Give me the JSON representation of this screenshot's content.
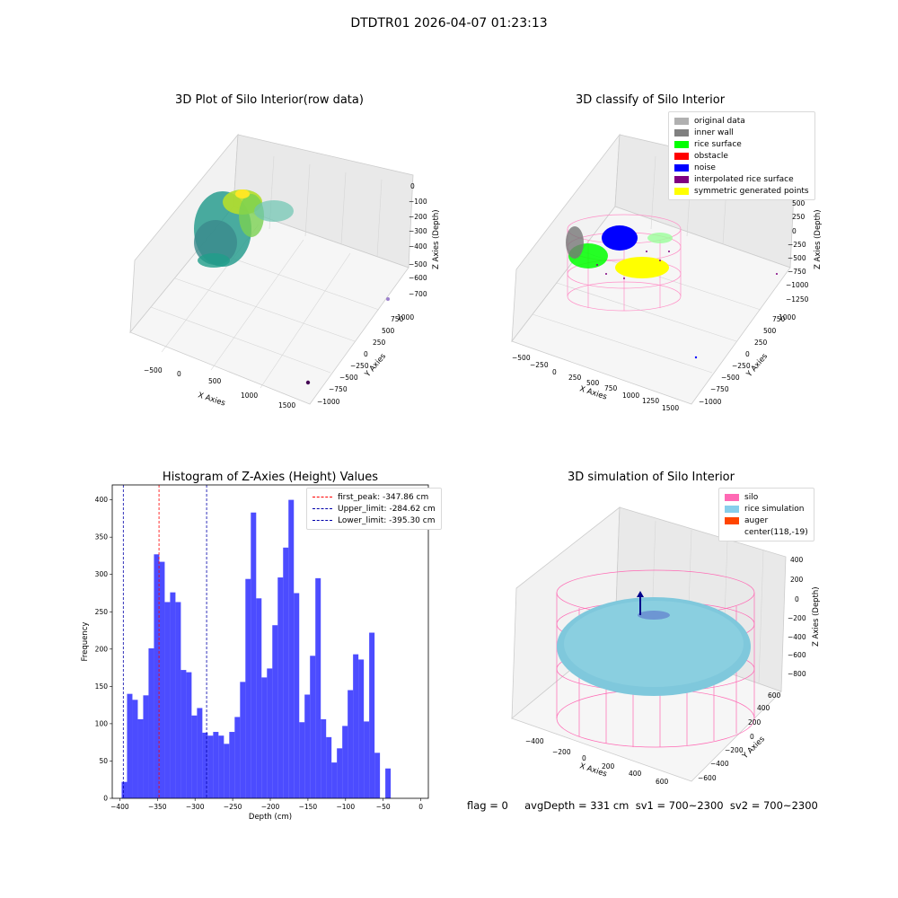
{
  "suptitle": "DTDTR01 2026-04-07 01:23:13",
  "plot1": {
    "title": "3D Plot of Silo Interior(row data)",
    "xlabel": "X Axies",
    "ylabel": "Y Axies",
    "zlabel": "Z Axies (Depth)",
    "xticks": [
      "−500",
      "0",
      "500",
      "1000",
      "1500"
    ],
    "yticks": [
      "−1000",
      "−750",
      "−500",
      "−250",
      "0",
      "250",
      "500",
      "750",
      "1000"
    ],
    "zticks": [
      "0",
      "−100",
      "−200",
      "−300",
      "−400",
      "−500",
      "−600",
      "−700"
    ]
  },
  "plot2": {
    "title": "3D classify of Silo Interior",
    "xlabel": "X Axies",
    "ylabel": "Y Axies",
    "zlabel": "Z Axies (Depth)",
    "xticks": [
      "−500",
      "−250",
      "0",
      "250",
      "500",
      "750",
      "1000",
      "1250",
      "1500"
    ],
    "yticks": [
      "−1000",
      "−750",
      "−500",
      "−250",
      "0",
      "250",
      "500",
      "750",
      "1000"
    ],
    "zticks": [
      "750",
      "500",
      "250",
      "0",
      "−250",
      "−500",
      "−750",
      "−1000",
      "−1250"
    ],
    "legend": [
      {
        "label": "original data",
        "color": "#b0b0b0"
      },
      {
        "label": "inner wall",
        "color": "#808080"
      },
      {
        "label": "rice surface",
        "color": "#00ff00"
      },
      {
        "label": "obstacle",
        "color": "#ff0000"
      },
      {
        "label": "noise",
        "color": "#0000ff"
      },
      {
        "label": "interpolated rice surface",
        "color": "#800080"
      },
      {
        "label": "symmetric generated points",
        "color": "#ffff00"
      }
    ]
  },
  "plot3": {
    "title": "3D simulation of Silo Interior",
    "xlabel": "X Axies",
    "ylabel": "Y Axies",
    "zlabel": "Z Axies (Depth)",
    "xticks": [
      "−400",
      "−200",
      "0",
      "200",
      "400",
      "600"
    ],
    "yticks": [
      "−600",
      "−400",
      "−200",
      "0",
      "200",
      "400",
      "600"
    ],
    "zticks": [
      "400",
      "200",
      "0",
      "−200",
      "−400",
      "−600",
      "−800"
    ],
    "legend": [
      {
        "label": "silo",
        "color": "#ff69b4"
      },
      {
        "label": "rice simulation",
        "color": "#87ceeb"
      },
      {
        "label": "auger",
        "color": "#ff4500"
      },
      {
        "label": "center(118,-19)",
        "color": ""
      }
    ]
  },
  "footer": "flag = 0     avgDepth = 331 cm  sv1 = 700~2300  sv2 = 700~2300",
  "chart_data": {
    "type": "bar",
    "title": "Histogram of Z-Axies (Height) Values",
    "xlabel": "Depth (cm)",
    "ylabel": "Frequency",
    "xlim": [
      -410,
      10
    ],
    "ylim": [
      0,
      420
    ],
    "xticks": [
      -400,
      -350,
      -300,
      -250,
      -200,
      -150,
      -100,
      -50,
      0
    ],
    "yticks": [
      0,
      50,
      100,
      150,
      200,
      250,
      300,
      350,
      400
    ],
    "bar_color": "#0000ff",
    "bin_start": -397.5,
    "bin_width": 7.15,
    "values": [
      22,
      140,
      132,
      106,
      138,
      201,
      327,
      317,
      263,
      276,
      263,
      172,
      169,
      111,
      121,
      88,
      84,
      89,
      84,
      73,
      89,
      109,
      156,
      294,
      383,
      268,
      162,
      174,
      232,
      296,
      336,
      400,
      275,
      102,
      139,
      191,
      295,
      106,
      82,
      48,
      67,
      97,
      145,
      193,
      186,
      103,
      222,
      61,
      0,
      40
    ],
    "vlines": [
      {
        "label": "first_peak: -347.86 cm",
        "x": -347.86,
        "color": "#ff0000"
      },
      {
        "label": "Upper_limit: -284.62 cm",
        "x": -284.62,
        "color": "#0000aa"
      },
      {
        "label": "Lower_limit: -395.30 cm",
        "x": -395.3,
        "color": "#0000aa"
      }
    ]
  }
}
